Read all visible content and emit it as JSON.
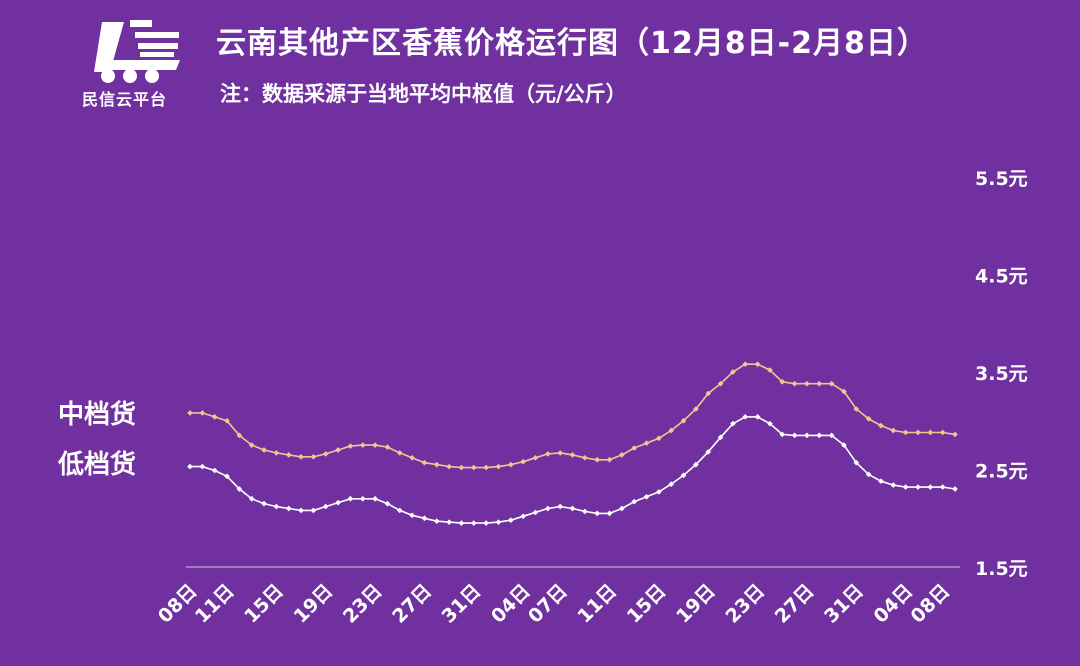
{
  "header": {
    "logo_text": "民信云平台",
    "title": "云南其他产区香蕉价格运行图（12月8日-2月8日）",
    "subtitle": "注：数据采源于当地平均中枢值（元/公斤）"
  },
  "colors": {
    "background": "#7030a0",
    "mid_series": "#f6c48e",
    "low_series": "#ffffff",
    "axis": "#d9c3ec"
  },
  "chart_data": {
    "type": "line",
    "y_ticks": [
      "5.5元",
      "4.5元",
      "3.5元",
      "2.5元",
      "1.5元"
    ],
    "ylim": [
      1.5,
      5.5
    ],
    "y_axis_position": "right",
    "grid": false,
    "x_labels": [
      "08日",
      "11日",
      "15日",
      "19日",
      "23日",
      "27日",
      "31日",
      "04日",
      "07日",
      "11日",
      "15日",
      "19日",
      "23日",
      "27日",
      "31日",
      "04日",
      "08日"
    ],
    "x_label_indices": [
      0,
      3,
      7,
      11,
      15,
      19,
      23,
      27,
      30,
      34,
      38,
      42,
      46,
      50,
      54,
      58,
      61
    ],
    "series": [
      {
        "name": "中档货",
        "values": [
          3.08,
          3.08,
          3.04,
          3.0,
          2.85,
          2.75,
          2.7,
          2.67,
          2.65,
          2.63,
          2.63,
          2.66,
          2.7,
          2.74,
          2.75,
          2.75,
          2.73,
          2.67,
          2.62,
          2.57,
          2.55,
          2.53,
          2.52,
          2.52,
          2.52,
          2.53,
          2.55,
          2.58,
          2.62,
          2.66,
          2.67,
          2.65,
          2.62,
          2.6,
          2.6,
          2.65,
          2.72,
          2.77,
          2.82,
          2.9,
          3.0,
          3.12,
          3.28,
          3.38,
          3.5,
          3.58,
          3.58,
          3.52,
          3.4,
          3.38,
          3.38,
          3.38,
          3.38,
          3.3,
          3.12,
          3.02,
          2.95,
          2.9,
          2.88,
          2.88,
          2.88,
          2.88,
          2.86
        ]
      },
      {
        "name": "低档货",
        "values": [
          2.53,
          2.53,
          2.49,
          2.43,
          2.3,
          2.2,
          2.15,
          2.12,
          2.1,
          2.08,
          2.08,
          2.12,
          2.16,
          2.2,
          2.2,
          2.2,
          2.15,
          2.08,
          2.03,
          2.0,
          1.97,
          1.96,
          1.95,
          1.95,
          1.95,
          1.96,
          1.98,
          2.02,
          2.06,
          2.1,
          2.12,
          2.1,
          2.07,
          2.05,
          2.05,
          2.1,
          2.17,
          2.22,
          2.27,
          2.35,
          2.44,
          2.55,
          2.68,
          2.83,
          2.97,
          3.04,
          3.04,
          2.97,
          2.86,
          2.85,
          2.85,
          2.85,
          2.85,
          2.75,
          2.57,
          2.45,
          2.38,
          2.34,
          2.32,
          2.32,
          2.32,
          2.32,
          2.3
        ]
      }
    ]
  }
}
